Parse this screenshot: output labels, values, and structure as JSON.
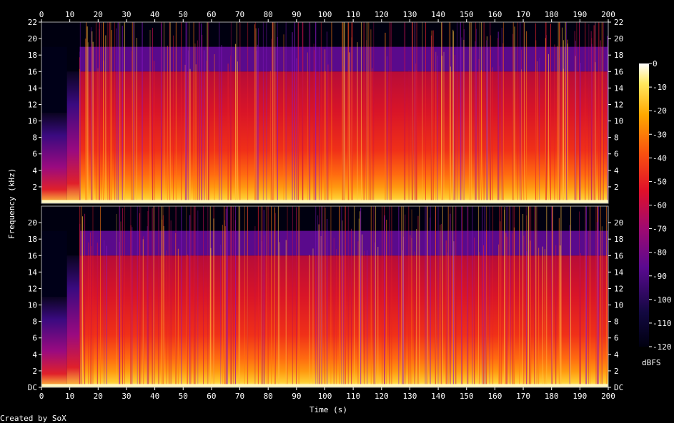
{
  "chart_data": {
    "type": "heatmap",
    "title": "",
    "xlabel": "Time (s)",
    "ylabel": "Frequency (kHz)",
    "x_ticks": [
      "0",
      "10",
      "20",
      "30",
      "40",
      "50",
      "60",
      "70",
      "80",
      "90",
      "100",
      "110",
      "120",
      "130",
      "140",
      "150",
      "160",
      "170",
      "180",
      "190",
      "200"
    ],
    "xlim": [
      0,
      200
    ],
    "channels": [
      {
        "y_ticks": [
          "2",
          "4",
          "6",
          "8",
          "10",
          "12",
          "14",
          "16",
          "18",
          "20",
          "22"
        ],
        "ylim": [
          0,
          22
        ]
      },
      {
        "y_ticks": [
          "DC",
          "2",
          "4",
          "6",
          "8",
          "10",
          "12",
          "14",
          "16",
          "18",
          "20"
        ],
        "ylim": [
          0,
          22
        ]
      }
    ],
    "colorbar": {
      "label": "dBFS",
      "ticks": [
        "0",
        "-10",
        "-20",
        "-30",
        "-40",
        "-50",
        "-60",
        "-70",
        "-80",
        "-90",
        "-100",
        "-110",
        "-120"
      ],
      "range": [
        -120,
        0
      ]
    },
    "colors": {
      "low": "#000010",
      "c1": "#1a0a5a",
      "c2": "#6a0aa0",
      "c3": "#c81040",
      "c4": "#f03010",
      "c5": "#ff8c00",
      "c6": "#ffe040",
      "high": "#ffffff"
    }
  },
  "footer": {
    "credit": "Created by SoX"
  }
}
